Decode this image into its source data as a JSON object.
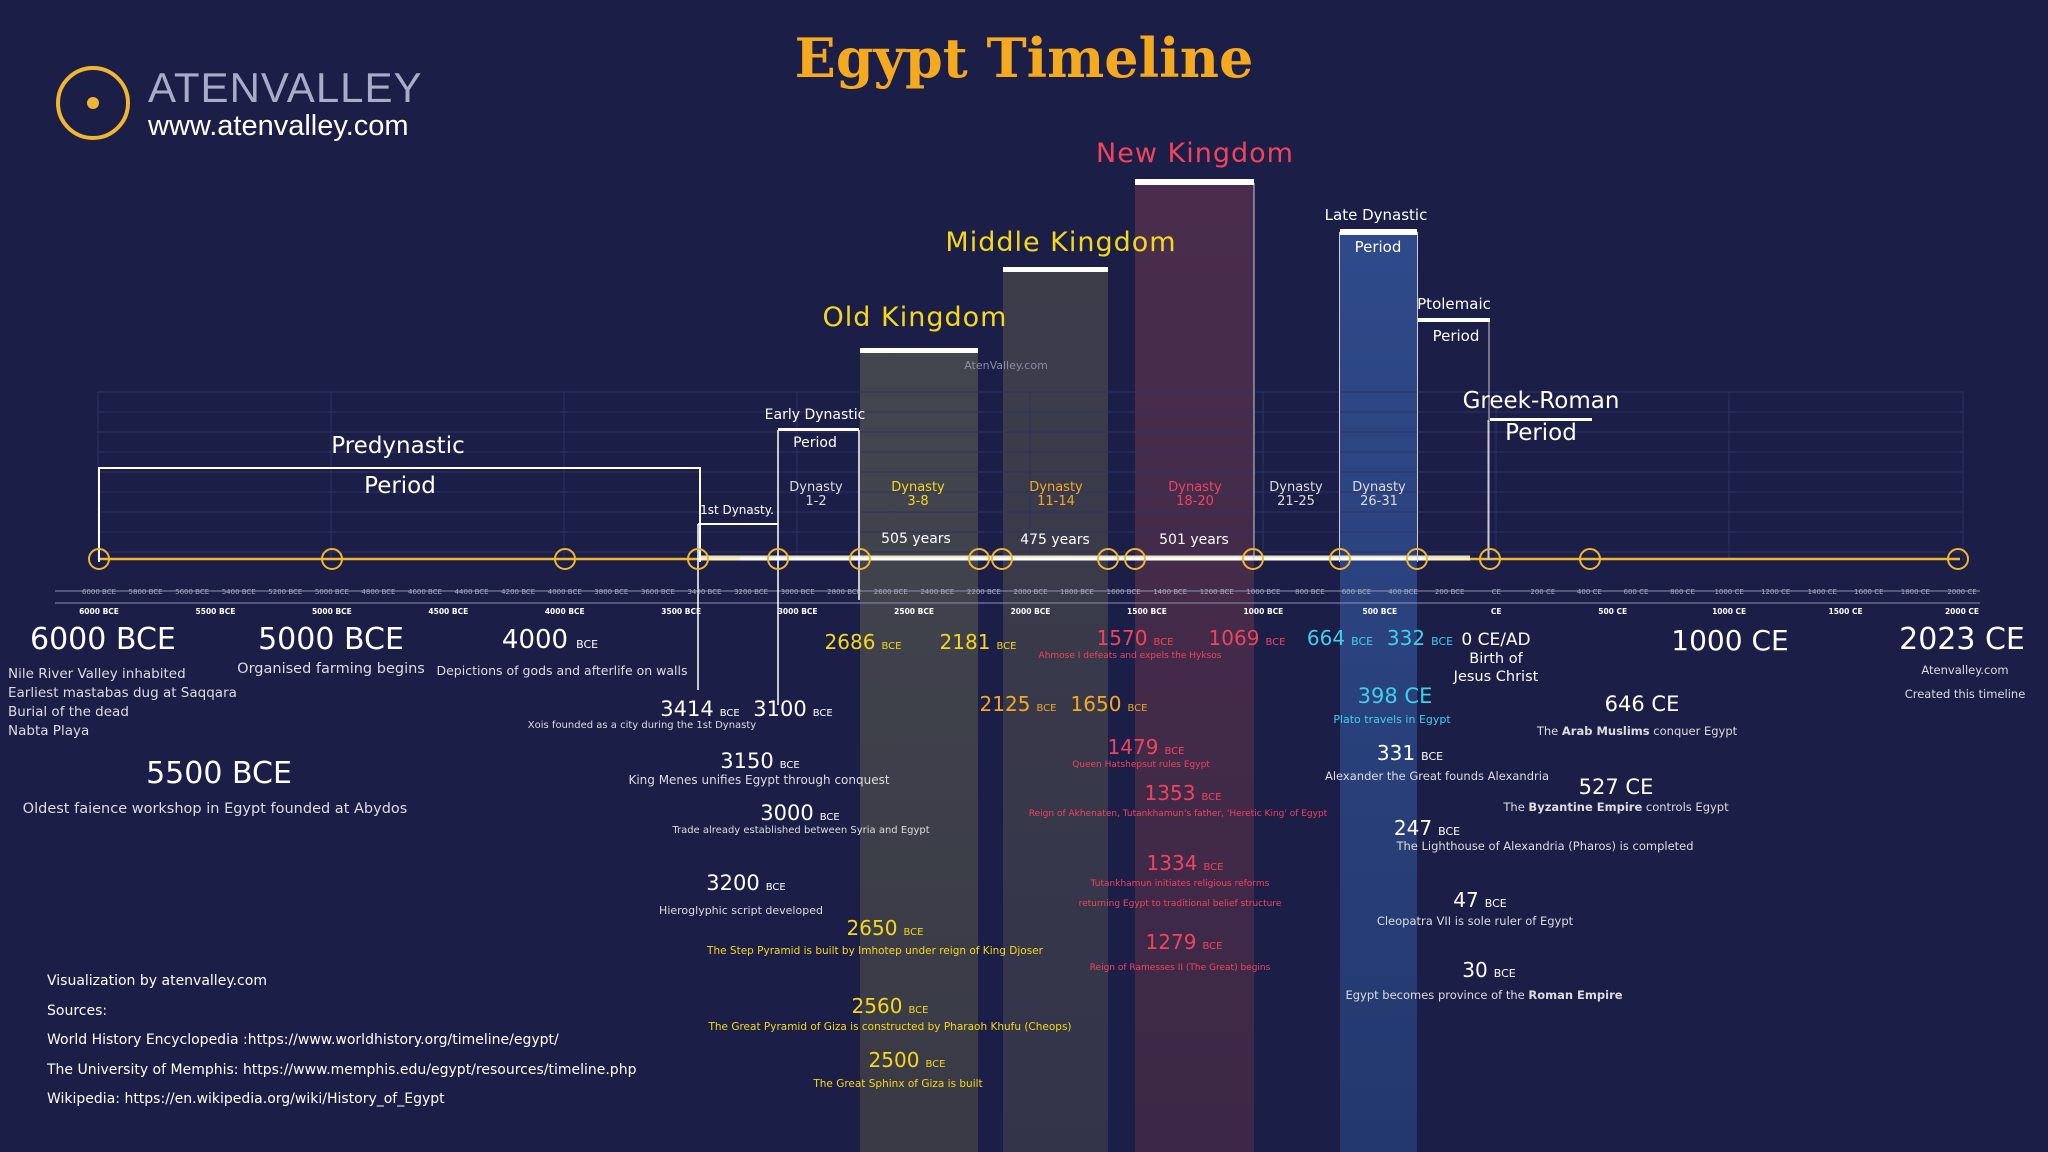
{
  "title": "Egypt Timeline",
  "brand": {
    "name_part1": "ATEN",
    "name_part2": "VALLEY",
    "url": "www.atenvalley.com"
  },
  "watermark": "AtenValley.com",
  "periods": {
    "predynastic": {
      "line1": "Predynastic",
      "line2": "Period"
    },
    "first_dynasty": "1st Dynasty.",
    "early_dynastic": {
      "line1": "Early Dynastic",
      "line2": "Period"
    },
    "old_kingdom": "Old Kingdom",
    "middle_kingdom": "Middle Kingdom",
    "new_kingdom": "New Kingdom",
    "late_dynastic": {
      "line1": "Late Dynastic",
      "line2": "Period"
    },
    "ptolemaic": {
      "line1": "Ptolemaic",
      "line2": "Period"
    },
    "greek_roman": {
      "line1": "Greek-Roman",
      "line2": "Period"
    }
  },
  "dynasties": {
    "d1_2": {
      "line1": "Dynasty",
      "line2": "1-2"
    },
    "d3_8": {
      "line1": "Dynasty",
      "line2": "3-8"
    },
    "d11_14": {
      "line1": "Dynasty",
      "line2": "11-14"
    },
    "d18_20": {
      "line1": "Dynasty",
      "line2": "18-20"
    },
    "d21_25": {
      "line1": "Dynasty",
      "line2": "21-25"
    },
    "d26_31": {
      "line1": "Dynasty",
      "line2": "26-31"
    }
  },
  "durations": {
    "old": "505 years",
    "middle": "475 years",
    "new": "501 years"
  },
  "top_ticks": [
    "6000 BCE",
    "5800 BCE",
    "5600 BCE",
    "5400 BCE",
    "5200 BCE",
    "5000 BCE",
    "4800 BCE",
    "4600 BCE",
    "4400 BCE",
    "4200 BCE",
    "4000 BCE",
    "3800 BCE",
    "3600 BCE",
    "3400 BCE",
    "3200 BCE",
    "3000 BCE",
    "2800 BCE",
    "2600 BCE",
    "2400 BCE",
    "2200 BCE",
    "2000 BCE",
    "1800 BCE",
    "1600 BCE",
    "1400 BCE",
    "1200 BCE",
    "1000 BCE",
    "800 BCE",
    "600 BCE",
    "400 BCE",
    "200 BCE",
    "CE",
    "200 CE",
    "400 CE",
    "600 CE",
    "800 CE",
    "1000 CE",
    "1200 CE",
    "1400 CE",
    "1600 CE",
    "1800 CE",
    "2000 CE"
  ],
  "bottom_ticks": [
    "6000 BCE",
    "5500 BCE",
    "5000 BCE",
    "4500 BCE",
    "4000 BCE",
    "3500 BCE",
    "3000 BCE",
    "2500 BCE",
    "2000 BCE",
    "1500 BCE",
    "1000 BCE",
    "500 BCE",
    "CE",
    "500 CE",
    "1000 CE",
    "1500 CE",
    "2000 CE"
  ],
  "bce": "BCE",
  "ce": "CE",
  "events": {
    "e6000": {
      "year": "6000 BCE",
      "desc1": "Nile River Valley inhabited",
      "desc2": "Earliest mastabas dug at Saqqara",
      "desc3": "Burial of the dead",
      "desc4": "Nabta Playa"
    },
    "e5500": {
      "year": "5500 BCE",
      "desc": "Oldest faience workshop in Egypt founded at Abydos"
    },
    "e5000": {
      "year": "5000 BCE",
      "desc": "Organised farming begins"
    },
    "e4000": {
      "year": "4000",
      "desc": "Depictions of gods and afterlife on walls"
    },
    "e3414": {
      "year": "3414",
      "desc": "Xois founded as a city during the 1st Dynasty"
    },
    "e3100": {
      "year": "3100"
    },
    "e3150": {
      "year": "3150",
      "desc": "King Menes unifies Egypt through conquest"
    },
    "e3000": {
      "year": "3000",
      "desc": "Trade already established between Syria and Egypt"
    },
    "e3200": {
      "year": "3200",
      "desc": "Hieroglyphic script developed"
    },
    "e2686": {
      "year": "2686"
    },
    "e2181": {
      "year": "2181"
    },
    "e2650": {
      "year": "2650",
      "desc": "The Step Pyramid is built by Imhotep under reign of King Djoser"
    },
    "e2560": {
      "year": "2560",
      "desc": "The Great Pyramid of Giza is constructed by Pharaoh Khufu (Cheops)"
    },
    "e2500": {
      "year": "2500",
      "desc": "The Great Sphinx of Giza is built"
    },
    "e2125": {
      "year": "2125"
    },
    "e1650": {
      "year": "1650"
    },
    "e1570": {
      "year": "1570",
      "desc": "Ahmose I defeats and expels the Hyksos"
    },
    "e1069": {
      "year": "1069"
    },
    "e1479": {
      "year": "1479",
      "desc": "Queen Hatshepsut rules Egypt"
    },
    "e1353": {
      "year": "1353",
      "desc": "Reign of Akhenaten, Tutankhamun's father, 'Heretic King' of Egypt"
    },
    "e1334": {
      "year": "1334",
      "desc1": "Tutankhamun initiates religious reforms",
      "desc2": "returning Egypt to traditional belief structure"
    },
    "e1279": {
      "year": "1279",
      "desc": "Reign of Ramesses II (The Great) begins"
    },
    "e664": {
      "year": "664"
    },
    "e332": {
      "year": "332"
    },
    "e0": {
      "year": "0 CE/AD",
      "desc1": "Birth of",
      "desc2": "Jesus Christ"
    },
    "e398": {
      "year": "398 CE",
      "desc": "Plato travels in Egypt"
    },
    "e331": {
      "year": "331",
      "desc": "Alexander the Great founds Alexandria"
    },
    "e247": {
      "year": "247",
      "desc": "The Lighthouse of Alexandria (Pharos) is completed"
    },
    "e47": {
      "year": "47",
      "desc": "Cleopatra VII is sole ruler of Egypt"
    },
    "e30": {
      "year": "30",
      "desc_pre": "Egypt becomes province of the ",
      "desc_bold": "Roman Empire"
    },
    "e1000ce": {
      "year": "1000 CE"
    },
    "e646": {
      "year": "646 CE",
      "desc_pre": "The ",
      "desc_bold": "Arab Muslims",
      "desc_post": " conquer Egypt"
    },
    "e527": {
      "year": "527 CE",
      "desc_pre": "The ",
      "desc_bold": "Byzantine Empire",
      "desc_post": " controls Egypt"
    },
    "e2023": {
      "year": "2023 CE",
      "desc1": "Atenvalley.com",
      "desc2": "Created this timeline"
    }
  },
  "sources": {
    "line1": "Visualization by atenvalley.com",
    "line2": "Sources:",
    "line3": "World History Encyclopedia :https://www.worldhistory.org/timeline/egypt/",
    "line4": "The University of Memphis: https://www.memphis.edu/egypt/resources/timeline.php",
    "line5": "Wikipedia: https://en.wikipedia.org/wiki/History_of_Egypt"
  },
  "colors": {
    "gold": "#f5a91f",
    "yellow": "#f5d81c",
    "red": "#f0445c",
    "cyan": "#3fd0ea",
    "background": "#1b1e47"
  }
}
